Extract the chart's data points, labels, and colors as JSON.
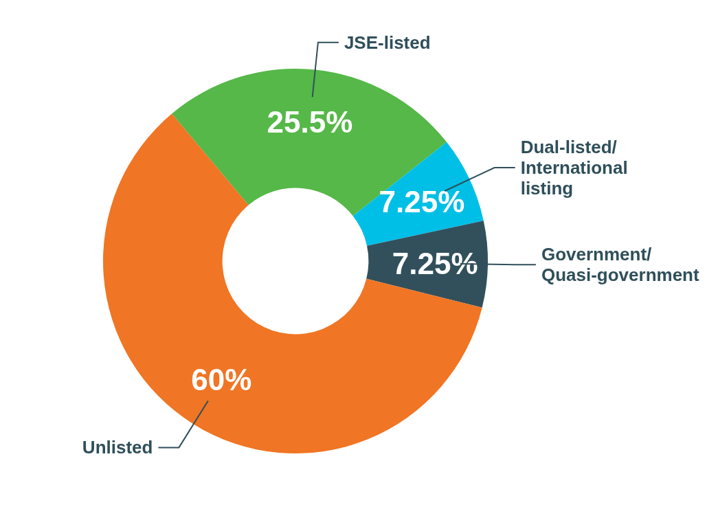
{
  "chart_data": {
    "type": "donut",
    "categories": [
      "JSE-listed",
      "Dual-listed/ International listing",
      "Government/ Quasi-government",
      "Unlisted"
    ],
    "values": [
      25.5,
      7.25,
      7.25,
      60
    ],
    "value_labels": [
      "25.5%",
      "7.25%",
      "7.25%",
      "60%"
    ],
    "colors": [
      "#55b848",
      "#00bfe6",
      "#31505c",
      "#f07524"
    ]
  }
}
